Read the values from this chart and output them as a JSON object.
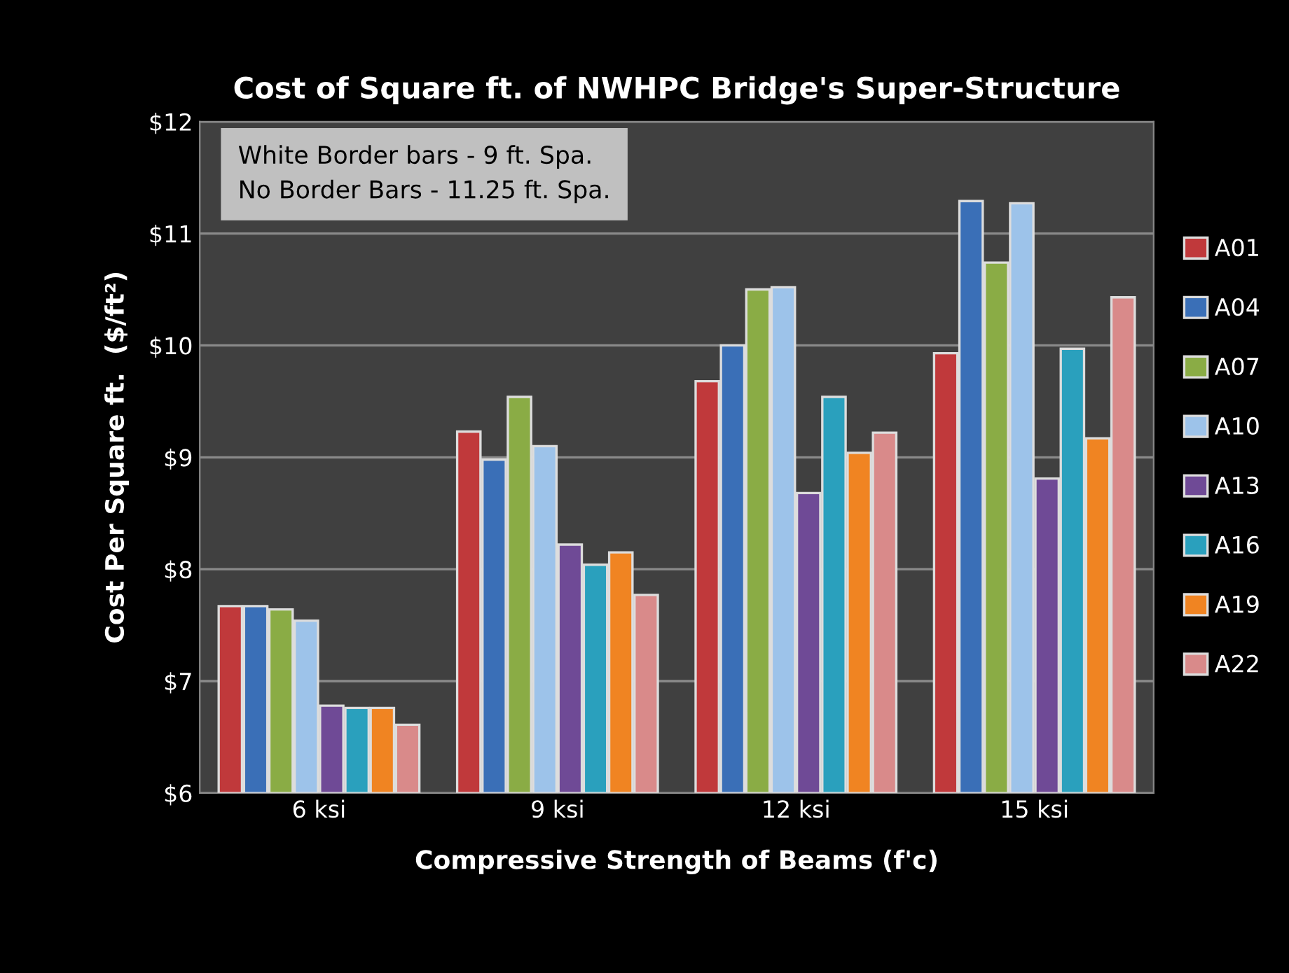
{
  "chart_data": {
    "type": "bar",
    "title": "Cost of Square ft. of NWHPC Bridge's Super-Structure",
    "xlabel": "Compressive Strength of Beams (f'c)",
    "ylabel": "Cost Per Square ft.  ($/ft²)",
    "categories": [
      "6 ksi",
      "9 ksi",
      "12 ksi",
      "15 ksi"
    ],
    "series": [
      {
        "name": "A01",
        "color": "#c0393b",
        "values": [
          7.67,
          9.23,
          9.68,
          9.93
        ]
      },
      {
        "name": "A04",
        "color": "#3a6fb7",
        "values": [
          7.67,
          8.98,
          10.0,
          11.29
        ]
      },
      {
        "name": "A07",
        "color": "#8aac45",
        "values": [
          7.64,
          9.54,
          10.5,
          10.74
        ]
      },
      {
        "name": "A10",
        "color": "#9dc3ea",
        "values": [
          7.54,
          9.1,
          10.52,
          11.27
        ]
      },
      {
        "name": "A13",
        "color": "#6f4a96",
        "values": [
          6.78,
          8.22,
          8.68,
          8.81
        ]
      },
      {
        "name": "A16",
        "color": "#2aa0bd",
        "values": [
          6.76,
          8.04,
          9.54,
          9.97
        ]
      },
      {
        "name": "A19",
        "color": "#f08422",
        "values": [
          6.76,
          8.15,
          9.04,
          9.17
        ]
      },
      {
        "name": "A22",
        "color": "#d98a8a",
        "values": [
          6.61,
          7.77,
          9.22,
          10.43
        ]
      }
    ],
    "ylim": [
      6,
      12
    ],
    "yticks": [
      {
        "value": 6,
        "label": "$6"
      },
      {
        "value": 7,
        "label": "$7"
      },
      {
        "value": 8,
        "label": "$8"
      },
      {
        "value": 9,
        "label": "$9"
      },
      {
        "value": 10,
        "label": "$10"
      },
      {
        "value": 11,
        "label": "$11"
      },
      {
        "value": 12,
        "label": "$12"
      }
    ],
    "annotations": [
      "White Border bars - 9 ft. Spa.\nNo Border Bars - 11.25 ft. Spa."
    ],
    "grid": "y",
    "legend": "right"
  }
}
